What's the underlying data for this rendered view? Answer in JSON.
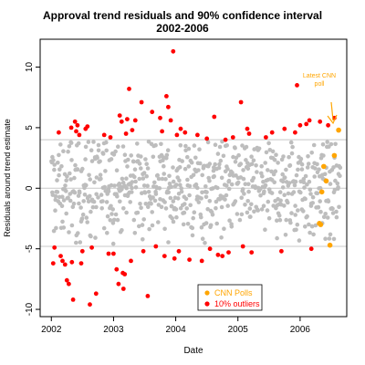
{
  "chart_data": {
    "type": "scatter",
    "title": "Approval trend residuals and 90% confidence interval",
    "subtitle": "2002-2006",
    "xlabel": "Date",
    "ylabel": "Residuals around trend estimate",
    "xlim": [
      2001.82,
      2006.75
    ],
    "ylim": [
      -10.6,
      12.3
    ],
    "x_ticks": [
      2002,
      2003,
      2004,
      2005,
      2006
    ],
    "x_tick_labels": [
      "2002",
      "2003",
      "2004",
      "2005",
      "2006"
    ],
    "y_ticks": [
      -10,
      -5,
      0,
      5,
      10
    ],
    "y_tick_labels": [
      "-10",
      "-5",
      "0",
      "5",
      "10"
    ],
    "reference_lines": [
      4.0,
      0,
      -4.8
    ],
    "colors": {
      "inlier": "#bdbdbd",
      "outlier": "#ff0000",
      "cnn": "#ffa500",
      "ref_line": "#c8c8c8",
      "annotation": "#ffa500"
    },
    "legend": {
      "placement": "bottom-center",
      "entries": [
        {
          "label": "CNN Polls",
          "color": "#ffa500"
        },
        {
          "label": "10% outliers",
          "color": "#ff0000"
        }
      ]
    },
    "annotation": {
      "text_line1": "Latest CNN",
      "text_line2": "poll",
      "x": 2006.62,
      "y": 4.8
    },
    "series": [
      {
        "name": "10% outliers",
        "points": [
          [
            2002.03,
            -6.2
          ],
          [
            2002.05,
            -4.9
          ],
          [
            2002.12,
            4.6
          ],
          [
            2002.15,
            -5.6
          ],
          [
            2002.18,
            -6.0
          ],
          [
            2002.22,
            -6.3
          ],
          [
            2002.25,
            -7.6
          ],
          [
            2002.28,
            -7.9
          ],
          [
            2002.32,
            5.0
          ],
          [
            2002.33,
            -6.1
          ],
          [
            2002.35,
            -9.2
          ],
          [
            2002.38,
            5.5
          ],
          [
            2002.4,
            4.7
          ],
          [
            2002.42,
            5.2
          ],
          [
            2002.45,
            4.4
          ],
          [
            2002.48,
            -6.2
          ],
          [
            2002.5,
            -5.2
          ],
          [
            2002.55,
            4.9
          ],
          [
            2002.58,
            5.1
          ],
          [
            2002.62,
            -9.6
          ],
          [
            2002.65,
            -4.9
          ],
          [
            2002.72,
            -8.7
          ],
          [
            2002.85,
            4.4
          ],
          [
            2002.92,
            -5.4
          ],
          [
            2002.95,
            4.2
          ],
          [
            2003.0,
            -5.4
          ],
          [
            2003.05,
            -6.7
          ],
          [
            2003.08,
            -7.9
          ],
          [
            2003.1,
            6.0
          ],
          [
            2003.13,
            5.5
          ],
          [
            2003.15,
            -7.0
          ],
          [
            2003.16,
            -8.3
          ],
          [
            2003.18,
            -7.1
          ],
          [
            2003.2,
            4.5
          ],
          [
            2003.22,
            5.7
          ],
          [
            2003.25,
            8.2
          ],
          [
            2003.28,
            -6.0
          ],
          [
            2003.3,
            4.8
          ],
          [
            2003.35,
            5.6
          ],
          [
            2003.45,
            7.1
          ],
          [
            2003.48,
            -5.2
          ],
          [
            2003.55,
            -8.9
          ],
          [
            2003.62,
            6.3
          ],
          [
            2003.68,
            -4.8
          ],
          [
            2003.75,
            5.8
          ],
          [
            2003.78,
            4.7
          ],
          [
            2003.82,
            -5.6
          ],
          [
            2003.85,
            7.6
          ],
          [
            2003.88,
            6.7
          ],
          [
            2003.92,
            5.6
          ],
          [
            2003.96,
            11.3
          ],
          [
            2003.98,
            -5.8
          ],
          [
            2004.02,
            4.4
          ],
          [
            2004.05,
            -5.2
          ],
          [
            2004.08,
            4.9
          ],
          [
            2004.15,
            4.6
          ],
          [
            2004.22,
            -5.9
          ],
          [
            2004.35,
            4.4
          ],
          [
            2004.42,
            -6.0
          ],
          [
            2004.5,
            4.1
          ],
          [
            2004.55,
            -5.0
          ],
          [
            2004.62,
            5.9
          ],
          [
            2004.68,
            -5.5
          ],
          [
            2004.75,
            -5.6
          ],
          [
            2004.8,
            4.0
          ],
          [
            2004.85,
            -5.3
          ],
          [
            2004.92,
            4.2
          ],
          [
            2005.05,
            7.1
          ],
          [
            2005.08,
            -4.8
          ],
          [
            2005.15,
            4.9
          ],
          [
            2005.18,
            4.5
          ],
          [
            2005.22,
            -5.3
          ],
          [
            2005.45,
            4.2
          ],
          [
            2005.55,
            4.6
          ],
          [
            2005.7,
            -5.2
          ],
          [
            2005.75,
            4.9
          ],
          [
            2005.92,
            4.6
          ],
          [
            2005.95,
            8.5
          ],
          [
            2006.0,
            5.2
          ],
          [
            2006.1,
            5.3
          ],
          [
            2006.15,
            5.6
          ],
          [
            2006.18,
            -5.0
          ],
          [
            2006.32,
            5.5
          ],
          [
            2006.45,
            5.2
          ],
          [
            2006.55,
            5.8
          ]
        ]
      },
      {
        "name": "CNN Polls",
        "points": [
          [
            2006.31,
            -2.9
          ],
          [
            2006.33,
            -3.0
          ],
          [
            2006.35,
            -0.3
          ],
          [
            2006.38,
            1.8
          ],
          [
            2006.42,
            0.6
          ],
          [
            2006.48,
            -4.7
          ],
          [
            2006.55,
            2.7
          ],
          [
            2006.62,
            4.8
          ]
        ]
      }
    ]
  }
}
